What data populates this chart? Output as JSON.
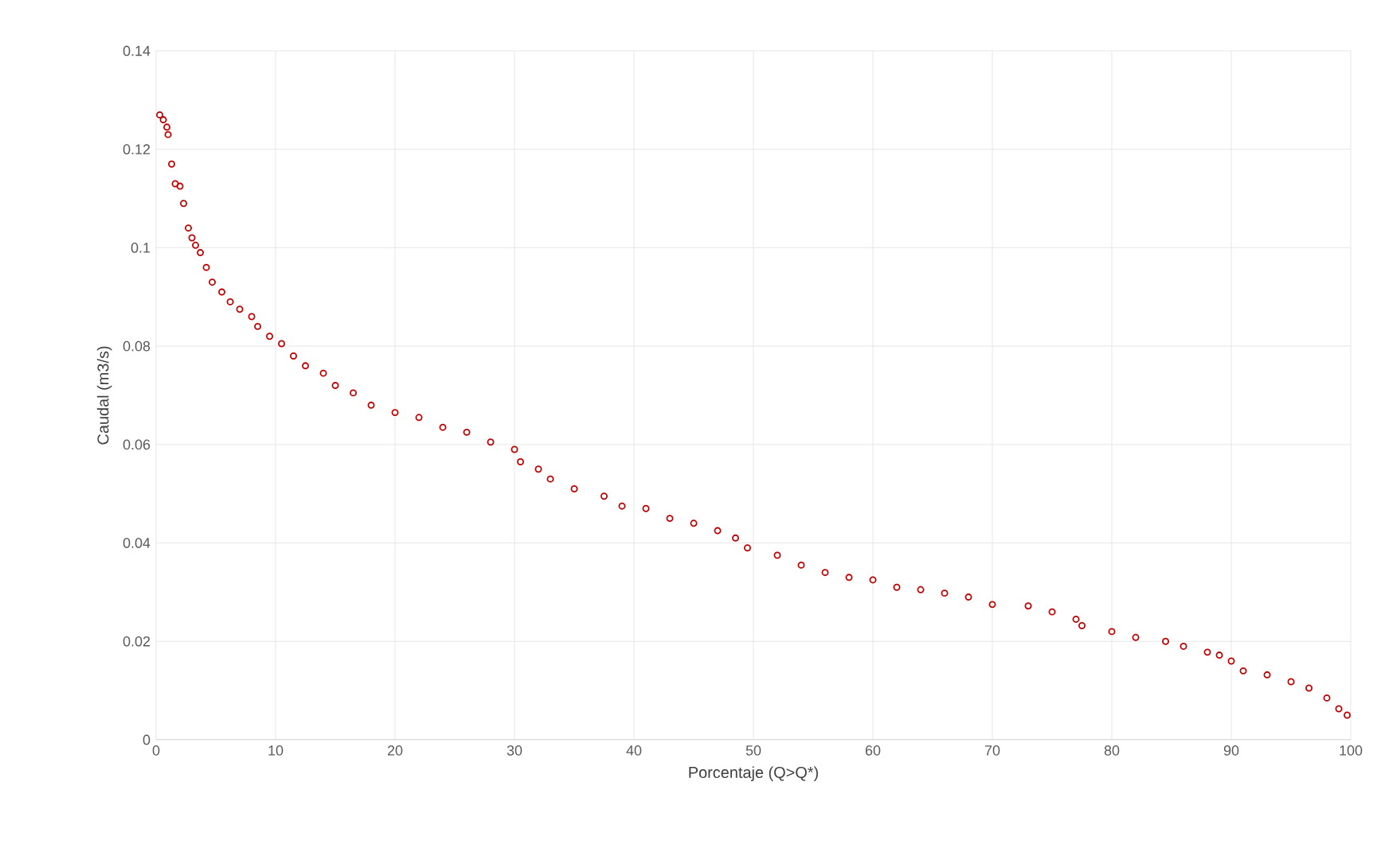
{
  "chart_data": {
    "type": "scatter",
    "xlabel": "Porcentaje (Q>Q*)",
    "ylabel": "Caudal (m3/s)",
    "xlim": [
      0,
      100
    ],
    "ylim": [
      0,
      0.14
    ],
    "xticks": [
      0,
      10,
      20,
      30,
      40,
      50,
      60,
      70,
      80,
      90,
      100
    ],
    "yticks": [
      0,
      0.02,
      0.04,
      0.06,
      0.08,
      0.1,
      0.12,
      0.14
    ],
    "grid": true,
    "marker": "circle",
    "series": [
      {
        "color": "#c00000",
        "x": [
          0.3,
          0.6,
          0.9,
          1.0,
          1.3,
          1.6,
          2.0,
          2.3,
          2.7,
          3.0,
          3.3,
          3.7,
          4.2,
          4.7,
          5.5,
          6.2,
          7.0,
          8.0,
          8.5,
          9.5,
          10.5,
          11.5,
          12.5,
          14,
          15,
          16.5,
          18,
          20,
          22,
          24,
          26,
          28,
          30,
          30.5,
          32,
          33,
          35,
          37.5,
          39,
          41,
          43,
          45,
          47,
          48.5,
          49.5,
          52,
          54,
          56,
          58,
          60,
          62,
          64,
          66,
          68,
          70,
          73,
          75,
          77,
          77.5,
          80,
          82,
          84.5,
          86,
          88,
          89,
          90,
          91,
          93,
          95,
          96.5,
          98,
          99,
          99.7
        ],
        "values": [
          0.127,
          0.126,
          0.1245,
          0.123,
          0.117,
          0.113,
          0.1125,
          0.109,
          0.104,
          0.102,
          0.1005,
          0.099,
          0.096,
          0.093,
          0.091,
          0.089,
          0.0875,
          0.086,
          0.084,
          0.082,
          0.0805,
          0.078,
          0.076,
          0.0745,
          0.072,
          0.0705,
          0.068,
          0.0665,
          0.0655,
          0.0635,
          0.0625,
          0.0605,
          0.059,
          0.0565,
          0.055,
          0.053,
          0.051,
          0.0495,
          0.0475,
          0.047,
          0.045,
          0.044,
          0.0425,
          0.041,
          0.039,
          0.0375,
          0.0355,
          0.034,
          0.033,
          0.0325,
          0.031,
          0.0305,
          0.0298,
          0.029,
          0.0275,
          0.0272,
          0.026,
          0.0245,
          0.0232,
          0.022,
          0.0208,
          0.02,
          0.019,
          0.0178,
          0.0172,
          0.016,
          0.014,
          0.0132,
          0.0118,
          0.0105,
          0.0085,
          0.0063,
          0.005
        ]
      }
    ]
  }
}
